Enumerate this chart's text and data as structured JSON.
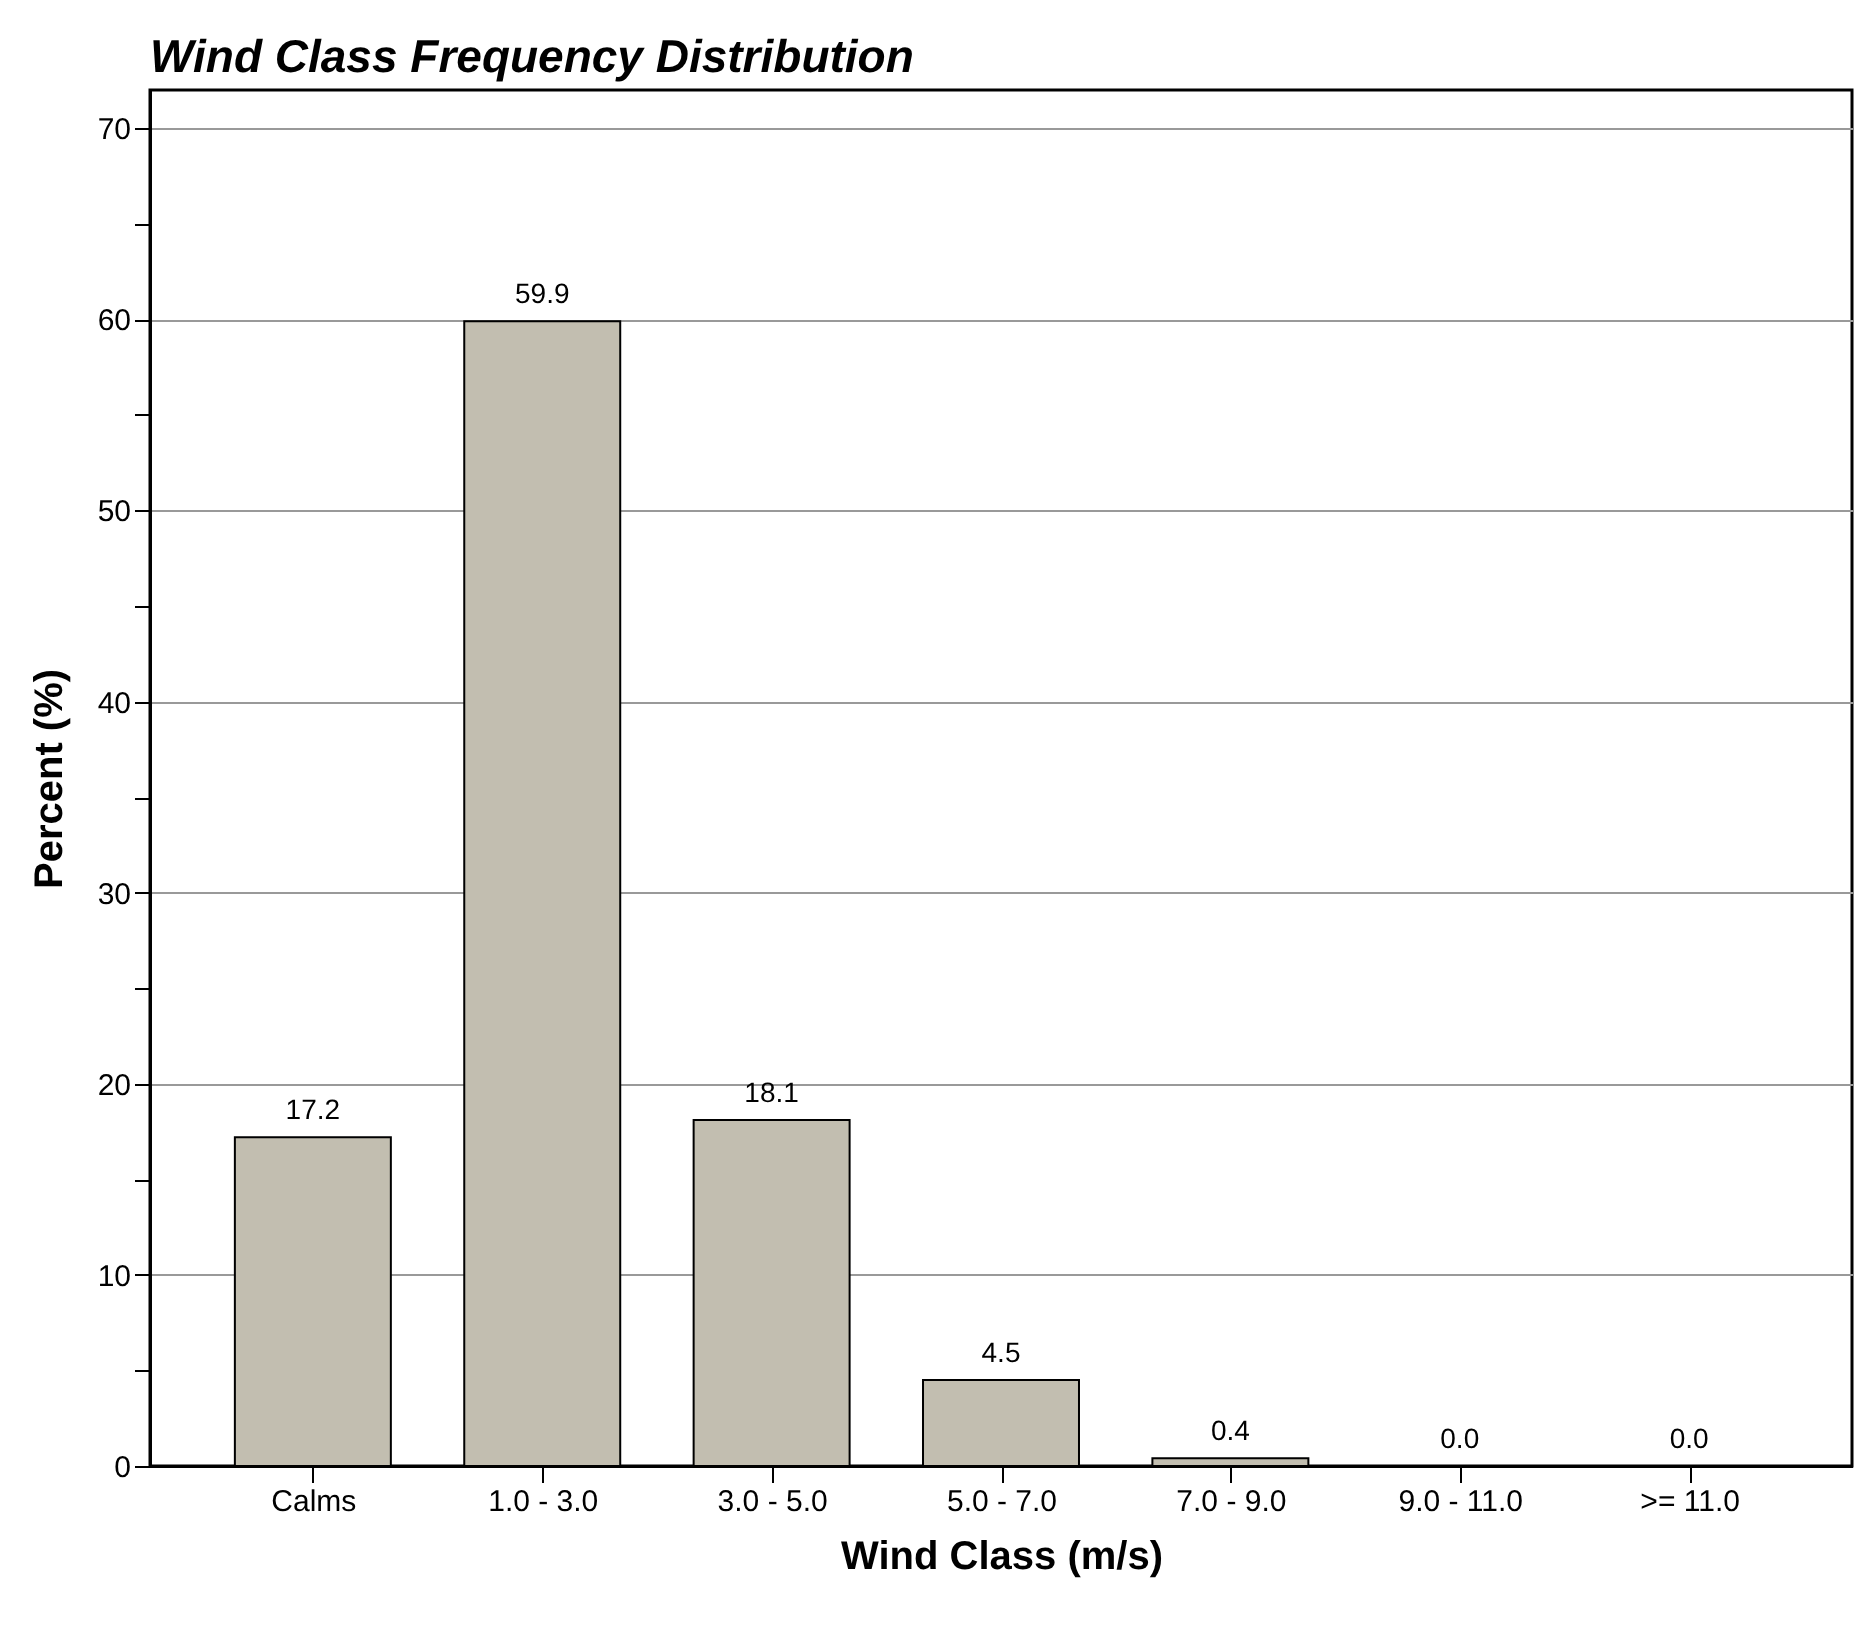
{
  "chart_data": {
    "type": "bar",
    "title": "Wind Class Frequency Distribution",
    "xlabel": "Wind Class (m/s)",
    "ylabel": "Percent (%)",
    "categories": [
      "Calms",
      "1.0 -  3.0",
      "3.0 -  5.0",
      "5.0 -  7.0",
      "7.0 -  9.0",
      "9.0 - 11.0",
      ">= 11.0"
    ],
    "values": [
      17.2,
      59.9,
      18.1,
      4.5,
      0.4,
      0.0,
      0.0
    ],
    "color": "#c2beb0",
    "ylim": [
      0,
      72
    ],
    "yticks": [
      0,
      {
        "value": 5,
        "label": null
      },
      10,
      {
        "value": 15,
        "label": null
      },
      20,
      {
        "value": 25,
        "label": null
      },
      30,
      {
        "value": 35,
        "label": null
      },
      40,
      {
        "value": 45,
        "label": null
      },
      50,
      {
        "value": 55,
        "label": null
      },
      60,
      {
        "value": 65,
        "label": null
      },
      70
    ],
    "grid": "y",
    "value_labels": [
      "17.2",
      "59.9",
      "18.1",
      "4.5",
      "0.4",
      "0.0",
      "0.0"
    ]
  }
}
